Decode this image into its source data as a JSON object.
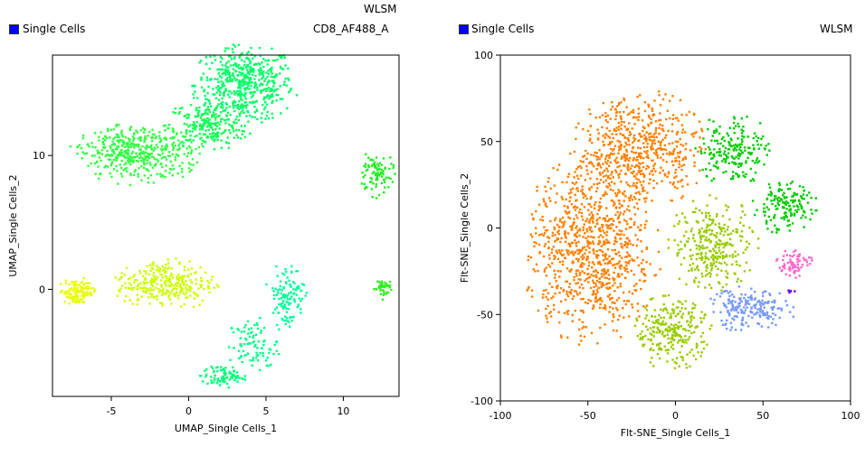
{
  "chart_data": [
    {
      "type": "scatter",
      "title": "CD8_AF488_A",
      "subtitle": "WLSM",
      "legend": "Single Cells",
      "legend_color": "#0000ff",
      "xlabel": "UMAP_Single Cells_1",
      "ylabel": "UMAP_Single Cells_2",
      "xlim": [
        -8.8,
        13.6
      ],
      "ylim": [
        -8,
        17.5
      ],
      "xticks": [
        -5,
        0,
        5,
        10
      ],
      "yticks": [
        0,
        10
      ],
      "clusters": [
        {
          "cx": 3.6,
          "cy": 15.3,
          "sx": 1.6,
          "sy": 1.4,
          "n": 500,
          "color": "#00ff66"
        },
        {
          "cx": 1.2,
          "cy": 12.2,
          "sx": 1.3,
          "sy": 0.9,
          "n": 220,
          "color": "#10ff55"
        },
        {
          "cx": -3.3,
          "cy": 10.2,
          "sx": 2.0,
          "sy": 1.1,
          "n": 450,
          "color": "#33ff44"
        },
        {
          "cx": 12.1,
          "cy": 8.6,
          "sx": 0.6,
          "sy": 0.8,
          "n": 90,
          "color": "#22ee22"
        },
        {
          "cx": -7.2,
          "cy": -0.2,
          "sx": 0.6,
          "sy": 0.5,
          "n": 120,
          "color": "#e8ff00"
        },
        {
          "cx": -1.5,
          "cy": 0.4,
          "sx": 1.6,
          "sy": 0.9,
          "n": 300,
          "color": "#ccff00"
        },
        {
          "cx": 6.3,
          "cy": -0.5,
          "sx": 0.6,
          "sy": 1.2,
          "n": 120,
          "color": "#00ff99"
        },
        {
          "cx": 4.2,
          "cy": -4.2,
          "sx": 0.8,
          "sy": 1.0,
          "n": 90,
          "color": "#00ff88"
        },
        {
          "cx": 2.2,
          "cy": -6.5,
          "sx": 0.7,
          "sy": 0.4,
          "n": 80,
          "color": "#00ff77"
        },
        {
          "cx": 12.5,
          "cy": 0.1,
          "sx": 0.3,
          "sy": 0.4,
          "n": 40,
          "color": "#33ee22"
        }
      ]
    },
    {
      "type": "scatter",
      "title": "WLSM",
      "legend": "Single Cells",
      "legend_color": "#0000ff",
      "xlabel": "Flt-SNE_Single Cells_1",
      "ylabel": "Flt-SNE_Single Cells_2",
      "xlim": [
        -100,
        100
      ],
      "ylim": [
        -100,
        100
      ],
      "xticks": [
        -100,
        -50,
        0,
        50,
        100
      ],
      "yticks": [
        -100,
        -50,
        0,
        50,
        100
      ],
      "clusters": [
        {
          "cx": -48,
          "cy": -12,
          "sx": 18,
          "sy": 26,
          "n": 900,
          "color": "#ff8000"
        },
        {
          "cx": -20,
          "cy": 45,
          "sx": 18,
          "sy": 16,
          "n": 550,
          "color": "#ff8000"
        },
        {
          "cx": 33,
          "cy": 45,
          "sx": 10,
          "sy": 10,
          "n": 200,
          "color": "#00cc00"
        },
        {
          "cx": 62,
          "cy": 12,
          "sx": 9,
          "sy": 7,
          "n": 160,
          "color": "#00cc00"
        },
        {
          "cx": 22,
          "cy": -10,
          "sx": 12,
          "sy": 13,
          "n": 300,
          "color": "#99cc00"
        },
        {
          "cx": -2,
          "cy": -60,
          "sx": 11,
          "sy": 10,
          "n": 260,
          "color": "#99cc00"
        },
        {
          "cx": 42,
          "cy": -47,
          "sx": 12,
          "sy": 6,
          "n": 200,
          "color": "#7799ff"
        },
        {
          "cx": 68,
          "cy": -20,
          "sx": 5,
          "sy": 4,
          "n": 70,
          "color": "#ff66cc"
        },
        {
          "cx": 66,
          "cy": -36,
          "sx": 1,
          "sy": 1,
          "n": 6,
          "color": "#6600ff"
        }
      ]
    }
  ]
}
